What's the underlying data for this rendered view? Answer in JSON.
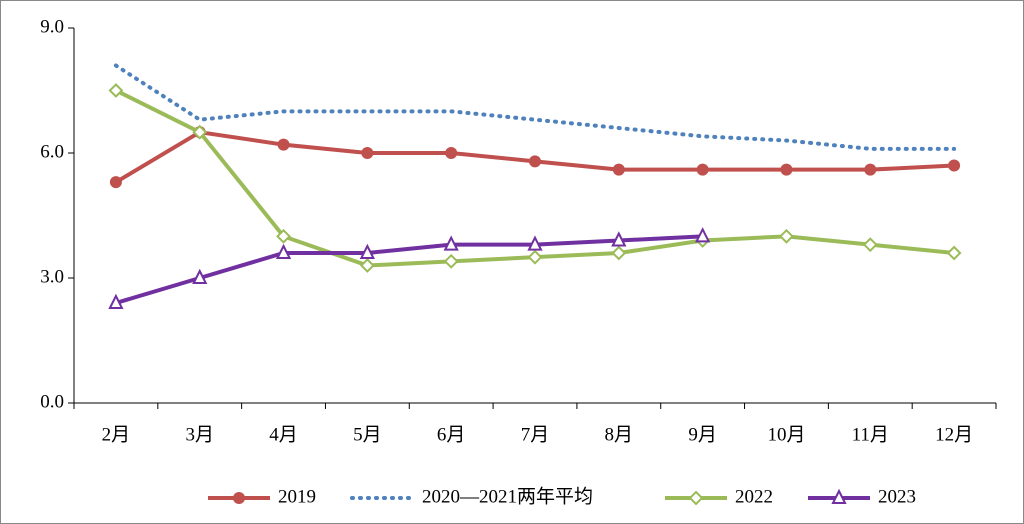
{
  "chart_data": {
    "type": "line",
    "categories": [
      "2月",
      "3月",
      "4月",
      "5月",
      "6月",
      "7月",
      "8月",
      "9月",
      "10月",
      "11月",
      "12月"
    ],
    "series": [
      {
        "name": "2019",
        "color": "#c0504d",
        "marker": "circle",
        "dash": "solid",
        "values": [
          5.3,
          6.5,
          6.2,
          6.0,
          6.0,
          5.8,
          5.6,
          5.6,
          5.6,
          5.6,
          5.7
        ]
      },
      {
        "name": "2020—2021两年平均",
        "color": "#4f81bd",
        "marker": "none",
        "dash": "dotted",
        "values": [
          8.1,
          6.8,
          7.0,
          7.0,
          7.0,
          6.8,
          6.6,
          6.4,
          6.3,
          6.1,
          6.1
        ]
      },
      {
        "name": "2022",
        "color": "#9bbb59",
        "marker": "diamond",
        "dash": "solid",
        "values": [
          7.5,
          6.5,
          4.0,
          3.3,
          3.4,
          3.5,
          3.6,
          3.9,
          4.0,
          3.8,
          3.6
        ]
      },
      {
        "name": "2023",
        "color": "#7030a0",
        "marker": "triangle",
        "dash": "solid",
        "values": [
          2.4,
          3.0,
          3.6,
          3.6,
          3.8,
          3.8,
          3.9,
          4.0,
          null,
          null,
          null
        ]
      }
    ],
    "ylim": [
      0,
      9
    ],
    "yticks": [
      {
        "value": 0,
        "label": "0.0"
      },
      {
        "value": 3,
        "label": "3.0"
      },
      {
        "value": 6,
        "label": "6.0"
      },
      {
        "value": 9,
        "label": "9.0"
      }
    ],
    "grid": false,
    "legend": "bottom"
  }
}
